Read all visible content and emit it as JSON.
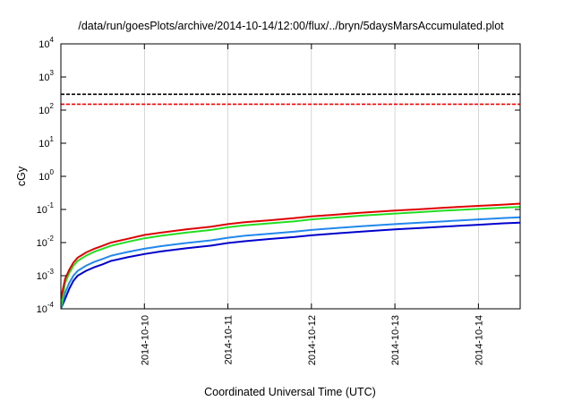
{
  "chart_data": {
    "type": "line",
    "title": "/data/run/goesPlots/archive/2014-10-14/12:00/flux/../bryn/5daysMarsAccumulated.plot",
    "xlabel": "Coordinated Universal Time (UTC)",
    "ylabel": "cGy",
    "yscale": "log",
    "ylim": [
      0.0001,
      10000
    ],
    "xlim": [
      0,
      5.5
    ],
    "y_ticks": [
      {
        "base": "10",
        "exp": "-4",
        "value": 0.0001
      },
      {
        "base": "10",
        "exp": "-3",
        "value": 0.001
      },
      {
        "base": "10",
        "exp": "-2",
        "value": 0.01
      },
      {
        "base": "10",
        "exp": "-1",
        "value": 0.1
      },
      {
        "base": "10",
        "exp": "0",
        "value": 1
      },
      {
        "base": "10",
        "exp": "1",
        "value": 10
      },
      {
        "base": "10",
        "exp": "2",
        "value": 100
      },
      {
        "base": "10",
        "exp": "3",
        "value": 1000
      },
      {
        "base": "10",
        "exp": "4",
        "value": 10000
      }
    ],
    "x_ticks": [
      {
        "label": "2014-10-10",
        "x": 1.0
      },
      {
        "label": "2014-10-11",
        "x": 2.0
      },
      {
        "label": "2014-10-12",
        "x": 3.0
      },
      {
        "label": "2014-10-13",
        "x": 4.0
      },
      {
        "label": "2014-10-14",
        "x": 5.0
      }
    ],
    "x_note": "x values are days after 2014-10-09 00:00 UTC",
    "hlines": [
      {
        "value": 300,
        "color": "#000000",
        "style": "dashed"
      },
      {
        "value": 150,
        "color": "#ff0000",
        "style": "dashed"
      }
    ],
    "series": [
      {
        "color": "#e00000",
        "x": [
          0.0,
          0.05,
          0.1,
          0.15,
          0.2,
          0.3,
          0.4,
          0.5,
          0.6,
          0.8,
          1.0,
          1.2,
          1.5,
          1.8,
          2.0,
          2.2,
          2.5,
          2.8,
          3.0,
          3.3,
          3.6,
          4.0,
          4.3,
          4.6,
          5.0,
          5.3,
          5.5
        ],
        "y": [
          0.0002,
          0.0008,
          0.0015,
          0.0025,
          0.0035,
          0.005,
          0.0065,
          0.008,
          0.01,
          0.013,
          0.017,
          0.02,
          0.025,
          0.03,
          0.036,
          0.041,
          0.047,
          0.055,
          0.062,
          0.07,
          0.08,
          0.092,
          0.102,
          0.113,
          0.128,
          0.14,
          0.15
        ]
      },
      {
        "color": "#22dd22",
        "x": [
          0.0,
          0.05,
          0.1,
          0.15,
          0.2,
          0.3,
          0.4,
          0.5,
          0.6,
          0.8,
          1.0,
          1.2,
          1.5,
          1.8,
          2.0,
          2.2,
          2.5,
          2.8,
          3.0,
          3.3,
          3.6,
          4.0,
          4.3,
          4.6,
          5.0,
          5.3,
          5.5
        ],
        "y": [
          0.0001,
          0.0006,
          0.0012,
          0.002,
          0.0028,
          0.004,
          0.0053,
          0.0065,
          0.008,
          0.0105,
          0.0135,
          0.016,
          0.02,
          0.024,
          0.029,
          0.033,
          0.038,
          0.044,
          0.05,
          0.057,
          0.065,
          0.075,
          0.083,
          0.092,
          0.104,
          0.113,
          0.12
        ]
      },
      {
        "color": "#2288ee",
        "x": [
          0.0,
          0.05,
          0.1,
          0.15,
          0.2,
          0.3,
          0.4,
          0.5,
          0.6,
          0.8,
          1.0,
          1.2,
          1.5,
          1.8,
          2.0,
          2.2,
          2.5,
          2.8,
          3.0,
          3.3,
          3.6,
          4.0,
          4.3,
          4.6,
          5.0,
          5.3,
          5.5
        ],
        "y": [
          0.0001,
          0.0003,
          0.0006,
          0.001,
          0.0014,
          0.002,
          0.0026,
          0.0032,
          0.004,
          0.0052,
          0.0065,
          0.0078,
          0.0097,
          0.0117,
          0.014,
          0.016,
          0.0185,
          0.0213,
          0.024,
          0.0275,
          0.031,
          0.036,
          0.04,
          0.044,
          0.05,
          0.055,
          0.058
        ]
      },
      {
        "color": "#0000cc",
        "x": [
          0.0,
          0.05,
          0.1,
          0.15,
          0.2,
          0.3,
          0.4,
          0.5,
          0.6,
          0.8,
          1.0,
          1.2,
          1.5,
          1.8,
          2.0,
          2.2,
          2.5,
          2.8,
          3.0,
          3.3,
          3.6,
          4.0,
          4.3,
          4.6,
          5.0,
          5.3,
          5.5
        ],
        "y": [
          0.0001,
          0.0002,
          0.0004,
          0.0007,
          0.001,
          0.0014,
          0.0018,
          0.0022,
          0.0028,
          0.0036,
          0.0045,
          0.0054,
          0.0067,
          0.0081,
          0.0097,
          0.011,
          0.0128,
          0.0147,
          0.0166,
          0.019,
          0.0215,
          0.025,
          0.0276,
          0.0305,
          0.0345,
          0.038,
          0.04
        ]
      }
    ]
  }
}
